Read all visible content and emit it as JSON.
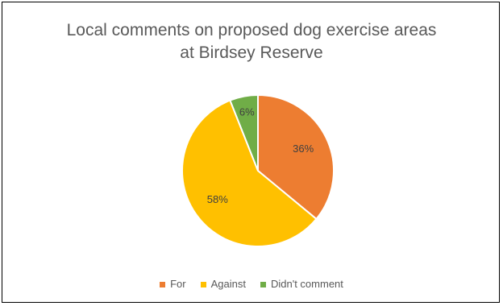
{
  "chart_data": {
    "type": "pie",
    "title_lines": [
      "Local comments on proposed dog exercise areas",
      "at Birdsey Reserve"
    ],
    "categories": [
      "For",
      "Against",
      "Didn't comment"
    ],
    "values": [
      36,
      58,
      6
    ],
    "data_labels": [
      "36%",
      "58%",
      "6%"
    ],
    "colors": [
      "#ED7D31",
      "#FFC000",
      "#70AD47"
    ],
    "legend_position": "bottom"
  }
}
